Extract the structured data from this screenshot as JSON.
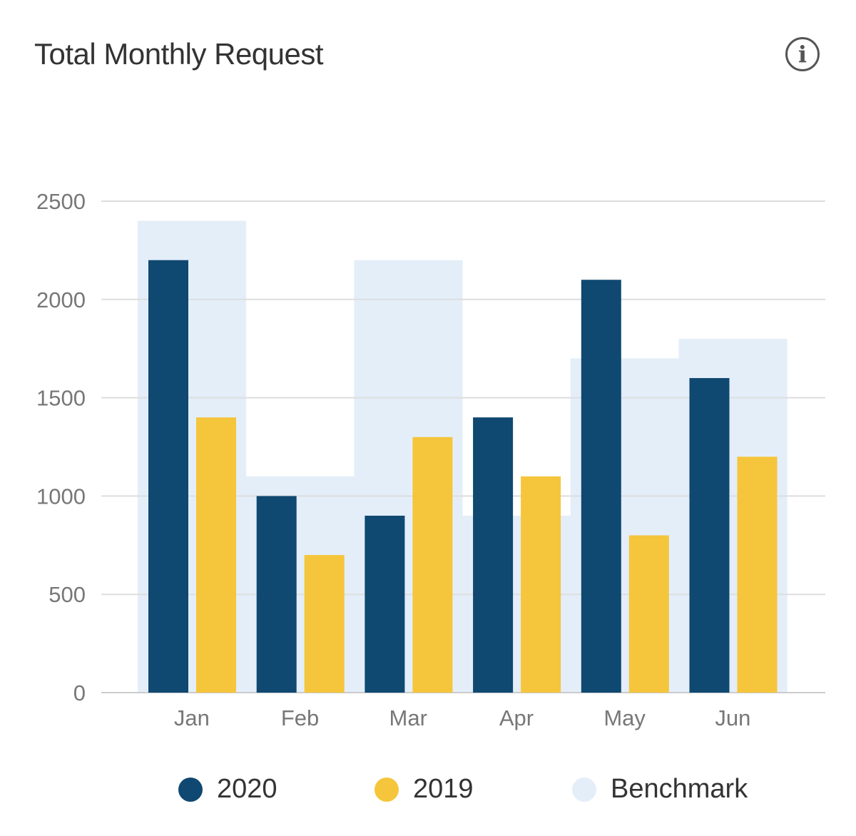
{
  "header": {
    "title": "Total Monthly Request",
    "info_icon": "info-icon"
  },
  "colors": {
    "s2020": "#0f4870",
    "s2019": "#f5c53b",
    "benchmark": "#e4eef9",
    "grid": "#dddddd"
  },
  "chart_data": {
    "type": "bar",
    "title": "Total Monthly Request",
    "xlabel": "",
    "ylabel": "",
    "categories": [
      "Jan",
      "Feb",
      "Mar",
      "Apr",
      "May",
      "Jun"
    ],
    "ylim": [
      0,
      2500
    ],
    "yticks": [
      "0",
      "500",
      "1000",
      "1500",
      "2000",
      "2500"
    ],
    "grid": true,
    "legend_position": "bottom",
    "series": [
      {
        "name": "2020",
        "values": [
          2200,
          1000,
          900,
          1400,
          2100,
          1600
        ]
      },
      {
        "name": "2019",
        "values": [
          1400,
          700,
          1300,
          1100,
          800,
          1200
        ]
      },
      {
        "name": "Benchmark",
        "values": [
          2400,
          1100,
          2200,
          900,
          1700,
          1800
        ]
      }
    ]
  }
}
